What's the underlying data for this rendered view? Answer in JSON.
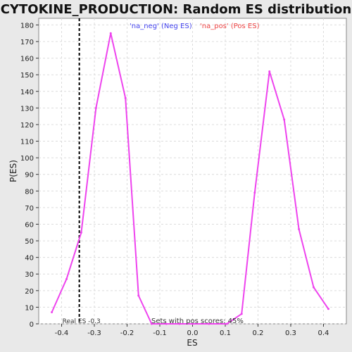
{
  "chart_data": {
    "type": "line",
    "title": "CYTOKINE_PRODUCTION: Random ES distribution",
    "xlabel": "ES",
    "ylabel": "P(ES)",
    "xlim": [
      -0.47,
      0.47
    ],
    "ylim": [
      0,
      184
    ],
    "x_ticks": [
      -0.4,
      -0.3,
      -0.2,
      -0.1,
      0.0,
      0.1,
      0.2,
      0.3,
      0.4
    ],
    "x_tick_labels": [
      "-0.4",
      "-0.3",
      "-0.2",
      "-0.1",
      "0.0",
      "0.1",
      "0.2",
      "0.3",
      "0.4"
    ],
    "y_ticks": [
      0,
      10,
      20,
      30,
      40,
      50,
      60,
      70,
      80,
      90,
      100,
      110,
      120,
      130,
      140,
      150,
      160,
      170,
      180
    ],
    "grid": true,
    "series": [
      {
        "name": "P(ES)",
        "color": "#ee44ee",
        "x": [
          -0.43,
          -0.385,
          -0.34,
          -0.295,
          -0.25,
          -0.205,
          -0.165,
          -0.125,
          -0.08,
          -0.04,
          0.0,
          0.05,
          0.105,
          0.15,
          0.19,
          0.235,
          0.28,
          0.325,
          0.37,
          0.415
        ],
        "y": [
          7,
          27,
          55,
          130,
          175,
          136,
          17,
          0,
          0,
          0,
          0,
          0,
          0,
          6,
          79,
          152,
          123,
          57,
          22,
          9
        ]
      }
    ],
    "legend": [
      {
        "label": "'na_neg' (Neg ES)",
        "color": "#4444ee"
      },
      {
        "label": "'na_pos' (Pos ES)",
        "color": "#ee4444"
      }
    ],
    "real_es": {
      "value": -0.346,
      "label": "Real ES -0.3"
    },
    "annotation": "Sets with pos scores: 45%"
  }
}
